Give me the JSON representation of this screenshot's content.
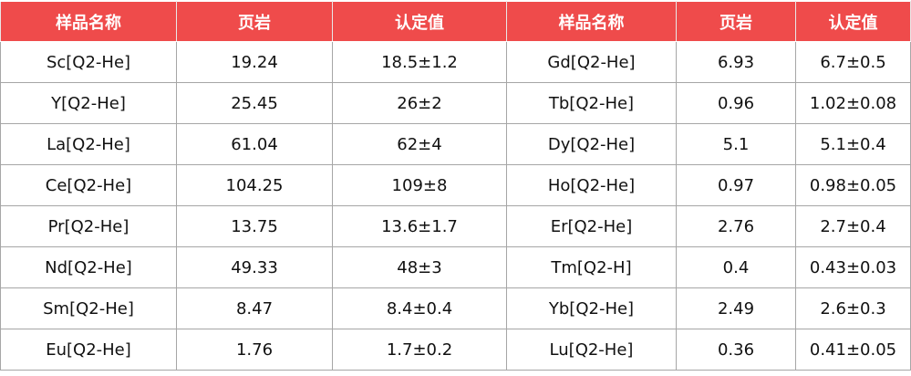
{
  "table": {
    "header": [
      "样品名称",
      "页岩",
      "认定值",
      "样品名称",
      "页岩",
      "认定值"
    ],
    "rows": [
      [
        "Sc[Q2-He]",
        "19.24",
        "18.5±1.2",
        "Gd[Q2-He]",
        "6.93",
        "6.7±0.5"
      ],
      [
        "Y[Q2-He]",
        "25.45",
        "26±2",
        "Tb[Q2-He]",
        "0.96",
        "1.02±0.08"
      ],
      [
        "La[Q2-He]",
        "61.04",
        "62±4",
        "Dy[Q2-He]",
        "5.1",
        "5.1±0.4"
      ],
      [
        "Ce[Q2-He]",
        "104.25",
        "109±8",
        "Ho[Q2-He]",
        "0.97",
        "0.98±0.05"
      ],
      [
        "Pr[Q2-He]",
        "13.75",
        "13.6±1.7",
        "Er[Q2-He]",
        "2.76",
        "2.7±0.4"
      ],
      [
        "Nd[Q2-He]",
        "49.33",
        "48±3",
        "Tm[Q2-H]",
        "0.4",
        "0.43±0.03"
      ],
      [
        "Sm[Q2-He]",
        "8.47",
        "8.4±0.4",
        "Yb[Q2-He]",
        "2.49",
        "2.6±0.3"
      ],
      [
        "Eu[Q2-He]",
        "1.76",
        "1.7±0.2",
        "Lu[Q2-He]",
        "0.36",
        "0.41±0.05"
      ]
    ]
  }
}
